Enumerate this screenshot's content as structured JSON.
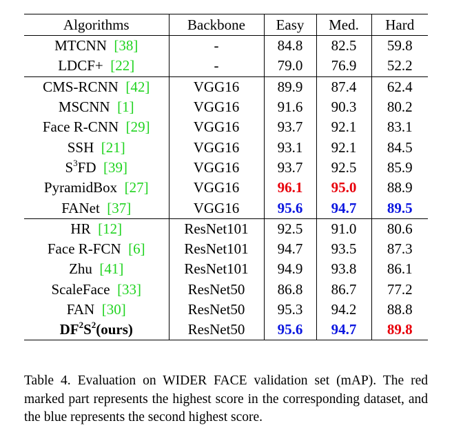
{
  "table": {
    "headers": [
      "Algorithms",
      "Backbone",
      "Easy",
      "Med.",
      "Hard"
    ],
    "rows": [
      {
        "name": "MTCNN",
        "ref": "[38]",
        "backbone": "-",
        "easy": "84.8",
        "med": "82.5",
        "hard": "59.8"
      },
      {
        "name": "LDCF+",
        "ref": "[22]",
        "backbone": "-",
        "easy": "79.0",
        "med": "76.9",
        "hard": "52.2"
      },
      {
        "name": "CMS-RCNN",
        "ref": "[42]",
        "backbone": "VGG16",
        "easy": "89.9",
        "med": "87.4",
        "hard": "62.4"
      },
      {
        "name": "MSCNN",
        "ref": "[1]",
        "backbone": "VGG16",
        "easy": "91.6",
        "med": "90.3",
        "hard": "80.2"
      },
      {
        "name": "Face R-CNN",
        "ref": "[29]",
        "backbone": "VGG16",
        "easy": "93.7",
        "med": "92.1",
        "hard": "83.1"
      },
      {
        "name": "SSH",
        "ref": "[21]",
        "backbone": "VGG16",
        "easy": "93.1",
        "med": "92.1",
        "hard": "84.5"
      },
      {
        "name_pre": "S",
        "name_sup": "3",
        "name_post": "FD",
        "ref": "[39]",
        "backbone": "VGG16",
        "easy": "93.7",
        "med": "92.5",
        "hard": "85.9"
      },
      {
        "name": "PyramidBox",
        "ref": "[27]",
        "backbone": "VGG16",
        "easy": "96.1",
        "med": "95.0",
        "hard": "88.9"
      },
      {
        "name": "FANet",
        "ref": "[37]",
        "backbone": "VGG16",
        "easy": "95.6",
        "med": "94.7",
        "hard": "89.5"
      },
      {
        "name": "HR",
        "ref": "[12]",
        "backbone": "ResNet101",
        "easy": "92.5",
        "med": "91.0",
        "hard": "80.6"
      },
      {
        "name": "Face R-FCN",
        "ref": "[6]",
        "backbone": "ResNet101",
        "easy": "94.7",
        "med": "93.5",
        "hard": "87.3"
      },
      {
        "name": "Zhu",
        "ref": "[41]",
        "backbone": "ResNet101",
        "easy": "94.9",
        "med": "93.8",
        "hard": "86.1"
      },
      {
        "name": "ScaleFace",
        "ref": "[33]",
        "backbone": "ResNet50",
        "easy": "86.8",
        "med": "86.7",
        "hard": "77.2"
      },
      {
        "name": "FAN",
        "ref": "[30]",
        "backbone": "ResNet50",
        "easy": "95.3",
        "med": "94.2",
        "hard": "88.8"
      },
      {
        "name_a": "DF",
        "sup_a": "2",
        "name_b": "S",
        "sup_b": "2",
        "name_c": "(ours)",
        "backbone": "ResNet50",
        "easy": "95.6",
        "med": "94.7",
        "hard": "89.8"
      }
    ]
  },
  "colors": {
    "highest": "#e8000b",
    "second": "#0b16e0",
    "reference": "#1fd31f"
  },
  "caption": "Table 4. Evaluation on WIDER FACE validation set (mAP). The red marked part represents the highest score in the corresponding dataset, and the blue represents the second highest score."
}
